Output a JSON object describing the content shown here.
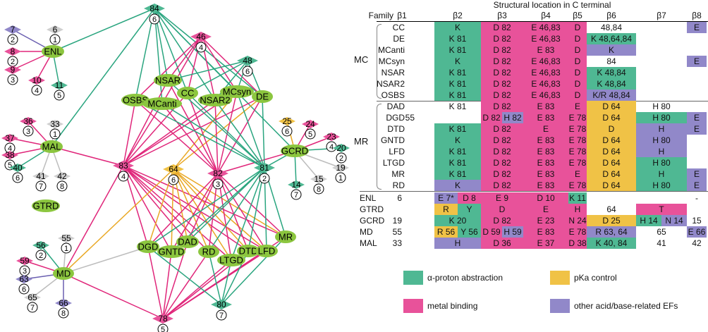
{
  "colors": {
    "green": "#4fb893",
    "pink": "#e8529a",
    "yellow": "#f0c246",
    "purple": "#9188c9",
    "gray": "#cfcfcf",
    "node_green": "#8cc63f",
    "edge_green": "#2aa57f",
    "edge_pink": "#e0267a",
    "edge_yellow": "#e9a825",
    "edge_gray": "#bdbdbd",
    "edge_purple": "#6a5fb0"
  },
  "table": {
    "title": "Structural location in C terminal",
    "headers": [
      "Family",
      "β1",
      "β2",
      "β3",
      "β4",
      "β5",
      "β6",
      "β7",
      "β8"
    ],
    "groups": [
      {
        "label": "MC"
      },
      {
        "label": "MR"
      }
    ],
    "rows": [
      {
        "family": "CC",
        "b1": "",
        "cells": [
          [
            "K",
            "g"
          ],
          [
            "D 82",
            "p"
          ],
          [
            "E 46,83",
            "p"
          ],
          [
            "D",
            "p"
          ],
          [
            "48,84",
            ""
          ],
          [
            "",
            ""
          ],
          [
            "E",
            "u"
          ]
        ]
      },
      {
        "family": "DE",
        "b1": "",
        "cells": [
          [
            "K 81",
            "g"
          ],
          [
            "D 82",
            "p"
          ],
          [
            "E 46,83",
            "p"
          ],
          [
            "D",
            "p"
          ],
          [
            "K 48,64,84",
            "g"
          ],
          [
            "",
            ""
          ],
          [
            "",
            ""
          ]
        ]
      },
      {
        "family": "MCanti",
        "b1": "",
        "cells": [
          [
            "K 81",
            "g"
          ],
          [
            "D 82",
            "p"
          ],
          [
            "E 83",
            "p"
          ],
          [
            "D",
            "p"
          ],
          [
            "K",
            "u"
          ],
          [
            "",
            ""
          ],
          [
            "",
            ""
          ]
        ]
      },
      {
        "family": "MCsyn",
        "b1": "",
        "cells": [
          [
            "K",
            "g"
          ],
          [
            "D 82",
            "p"
          ],
          [
            "E 46,83",
            "p"
          ],
          [
            "D",
            "p"
          ],
          [
            "84",
            ""
          ],
          [
            "",
            ""
          ],
          [
            "E",
            "u"
          ]
        ]
      },
      {
        "family": "NSAR",
        "b1": "",
        "cells": [
          [
            "K 81",
            "g"
          ],
          [
            "D 82",
            "p"
          ],
          [
            "E 46,83",
            "p"
          ],
          [
            "D",
            "p"
          ],
          [
            "K 48,84",
            "g"
          ],
          [
            "",
            ""
          ],
          [
            "",
            ""
          ]
        ]
      },
      {
        "family": "NSAR2",
        "b1": "",
        "cells": [
          [
            "K 81",
            "g"
          ],
          [
            "D 82",
            "p"
          ],
          [
            "E 46,83",
            "p"
          ],
          [
            "D",
            "p"
          ],
          [
            "K 48,84",
            "g"
          ],
          [
            "",
            ""
          ],
          [
            "",
            ""
          ]
        ]
      },
      {
        "family": "OSBS",
        "b1": "",
        "cells": [
          [
            "K 81",
            "g"
          ],
          [
            "D 82",
            "p"
          ],
          [
            "E 46,83",
            "p"
          ],
          [
            "D",
            "p"
          ],
          [
            "K/R 48,84",
            "u"
          ],
          [
            "",
            ""
          ],
          [
            "",
            ""
          ]
        ]
      },
      {
        "family": "DAD",
        "b1": "",
        "cells": [
          [
            "K 81",
            ""
          ],
          [
            "D 82",
            "p"
          ],
          [
            "E 83",
            "p"
          ],
          [
            "E",
            "p"
          ],
          [
            "D 64",
            "y"
          ],
          [
            "H 80",
            ""
          ],
          [
            "",
            ""
          ]
        ]
      },
      {
        "family": "DGD",
        "b1": "55",
        "cells": [
          [
            "",
            ""
          ],
          [
            "D 82|H 82",
            "pu"
          ],
          [
            "E 83",
            "p"
          ],
          [
            "E 78",
            "p"
          ],
          [
            "D 64",
            "y"
          ],
          [
            "H 80",
            "g"
          ],
          [
            "E",
            "u"
          ]
        ]
      },
      {
        "family": "DTD",
        "b1": "",
        "cells": [
          [
            "K 81",
            "g"
          ],
          [
            "D 82",
            "p"
          ],
          [
            "E",
            "p"
          ],
          [
            "E 78",
            "p"
          ],
          [
            "D",
            "y"
          ],
          [
            "H",
            "u"
          ],
          [
            "E",
            "u"
          ]
        ]
      },
      {
        "family": "GNTD",
        "b1": "",
        "cells": [
          [
            "K",
            "g"
          ],
          [
            "D 82",
            "p"
          ],
          [
            "E 83",
            "p"
          ],
          [
            "E 78",
            "p"
          ],
          [
            "D 64",
            "y"
          ],
          [
            "H 80",
            "u"
          ],
          [
            "",
            ""
          ]
        ]
      },
      {
        "family": "LFD",
        "b1": "",
        "cells": [
          [
            "K 81",
            "g"
          ],
          [
            "D 82",
            "p"
          ],
          [
            "E 83",
            "p"
          ],
          [
            "E 78",
            "p"
          ],
          [
            "D 64",
            "y"
          ],
          [
            "H",
            "u"
          ],
          [
            "",
            ""
          ]
        ]
      },
      {
        "family": "LTGD",
        "b1": "",
        "cells": [
          [
            "K 81",
            "g"
          ],
          [
            "D 82",
            "p"
          ],
          [
            "E 83",
            "p"
          ],
          [
            "E 78",
            "p"
          ],
          [
            "D 64",
            "y"
          ],
          [
            "H 80",
            "g"
          ],
          [
            "",
            ""
          ]
        ]
      },
      {
        "family": "MR",
        "b1": "",
        "cells": [
          [
            "K 81",
            "g"
          ],
          [
            "D 82",
            "p"
          ],
          [
            "E 83",
            "p"
          ],
          [
            "E",
            "p"
          ],
          [
            "D 64",
            "y"
          ],
          [
            "H",
            "g"
          ],
          [
            "E",
            "u"
          ]
        ]
      },
      {
        "family": "RD",
        "b1": "",
        "cells": [
          [
            "K",
            "u"
          ],
          [
            "D 82",
            "p"
          ],
          [
            "E 83",
            "p"
          ],
          [
            "E 78",
            "p"
          ],
          [
            "D 64",
            "y"
          ],
          [
            "H 80",
            "g"
          ],
          [
            "E",
            "u"
          ]
        ]
      },
      {
        "family": "ENL",
        "b1": "6",
        "cells": [
          [
            "E 7*|D 8",
            "up"
          ],
          [
            "E 9",
            "p"
          ],
          [
            "D 10",
            "p"
          ],
          [
            "K 11",
            "g"
          ],
          [
            "",
            ""
          ],
          [
            "",
            ""
          ],
          [
            "-",
            ""
          ]
        ]
      },
      {
        "family": "GTRD",
        "b1": "",
        "cells": [
          [
            "R|Y",
            "yg"
          ],
          [
            "D",
            "p"
          ],
          [
            "E",
            "p"
          ],
          [
            "H",
            "p"
          ],
          [
            "64",
            ""
          ],
          [
            "T",
            "p"
          ],
          [
            "",
            ""
          ]
        ]
      },
      {
        "family": "GCRD",
        "b1": "19",
        "cells": [
          [
            "K 20",
            "g"
          ],
          [
            "D 82",
            "p"
          ],
          [
            "E 23",
            "p"
          ],
          [
            "N 24",
            "p"
          ],
          [
            "D 25",
            "y"
          ],
          [
            "H 14|N 14",
            "gu"
          ],
          [
            "15",
            ""
          ]
        ]
      },
      {
        "family": "MD",
        "b1": "55",
        "cells": [
          [
            "R 56|Y 56",
            "yg"
          ],
          [
            "D 59|H 59",
            "pu"
          ],
          [
            "E 83",
            "p"
          ],
          [
            "E 78",
            "p"
          ],
          [
            "R 63, 64",
            "u"
          ],
          [
            "65",
            ""
          ],
          [
            "E 66",
            "u"
          ]
        ]
      },
      {
        "family": "MAL",
        "b1": "33",
        "cells": [
          [
            "H",
            "u"
          ],
          [
            "D 36",
            "p"
          ],
          [
            "E 37",
            "p"
          ],
          [
            "D 38",
            "p"
          ],
          [
            "K 40, 84",
            "g"
          ],
          [
            "41",
            ""
          ],
          [
            "42",
            ""
          ]
        ]
      }
    ]
  },
  "legend": [
    {
      "key": "green",
      "label": "α-proton abstraction"
    },
    {
      "key": "yellow",
      "label": "pKa control"
    },
    {
      "key": "pink",
      "label": "metal binding"
    },
    {
      "key": "purple",
      "label": "other acid/base-related EFs"
    }
  ],
  "network": {
    "families": [
      {
        "id": "ENL",
        "label": "ENL"
      },
      {
        "id": "MAL",
        "label": "MAL"
      },
      {
        "id": "GTRD",
        "label": "GTRD"
      },
      {
        "id": "MD",
        "label": "MD"
      },
      {
        "id": "OSBS",
        "label": "OSBS"
      },
      {
        "id": "MCanti",
        "label": "MCanti"
      },
      {
        "id": "NSAR",
        "label": "NSAR"
      },
      {
        "id": "CC",
        "label": "CC"
      },
      {
        "id": "NSAR2",
        "label": "NSAR2"
      },
      {
        "id": "MCsyn",
        "label": "MCsyn"
      },
      {
        "id": "DE",
        "label": "DE"
      },
      {
        "id": "GCRD",
        "label": "GCRD"
      },
      {
        "id": "DGD",
        "label": "DGD"
      },
      {
        "id": "GNTD",
        "label": "GNTD"
      },
      {
        "id": "DAD",
        "label": "DAD"
      },
      {
        "id": "RD",
        "label": "RD"
      },
      {
        "id": "LTGD",
        "label": "LTGD"
      },
      {
        "id": "DTD",
        "label": "DTD"
      },
      {
        "id": "LFD",
        "label": "LFD"
      },
      {
        "id": "MR",
        "label": "MR"
      }
    ],
    "positions": [
      {
        "id": "p84",
        "num": "84",
        "strand": "6",
        "color": "green"
      },
      {
        "id": "p46",
        "num": "46",
        "strand": "4",
        "color": "pink"
      },
      {
        "id": "p48",
        "num": "48",
        "strand": "6",
        "color": "green"
      },
      {
        "id": "p83",
        "num": "83",
        "strand": "4",
        "color": "pink"
      },
      {
        "id": "p64",
        "num": "64",
        "strand": "6",
        "color": "yellow"
      },
      {
        "id": "p82",
        "num": "82",
        "strand": "3",
        "color": "pink"
      },
      {
        "id": "p81",
        "num": "81",
        "strand": "2",
        "color": "green"
      },
      {
        "id": "p78",
        "num": "78",
        "strand": "5",
        "color": "pink"
      },
      {
        "id": "p80",
        "num": "80",
        "strand": "7",
        "color": "green"
      },
      {
        "id": "p7",
        "num": "7",
        "strand": "2",
        "color": "purple"
      },
      {
        "id": "p6",
        "num": "6",
        "strand": "1",
        "color": "gray"
      },
      {
        "id": "p8",
        "num": "8",
        "strand": "2",
        "color": "pink"
      },
      {
        "id": "p9",
        "num": "9",
        "strand": "3",
        "color": "pink"
      },
      {
        "id": "p10",
        "num": "10",
        "strand": "4",
        "color": "pink"
      },
      {
        "id": "p11",
        "num": "11",
        "strand": "5",
        "color": "green"
      },
      {
        "id": "p36",
        "num": "36",
        "strand": "3",
        "color": "pink"
      },
      {
        "id": "p33",
        "num": "33",
        "strand": "1",
        "color": "gray"
      },
      {
        "id": "p37",
        "num": "37",
        "strand": "4",
        "color": "pink"
      },
      {
        "id": "p38",
        "num": "38",
        "strand": "5",
        "color": "pink"
      },
      {
        "id": "p40",
        "num": "40",
        "strand": "6",
        "color": "green"
      },
      {
        "id": "p41",
        "num": "41",
        "strand": "7",
        "color": "gray"
      },
      {
        "id": "p42",
        "num": "42",
        "strand": "8",
        "color": "gray"
      },
      {
        "id": "p25",
        "num": "25",
        "strand": "6",
        "color": "yellow"
      },
      {
        "id": "p24",
        "num": "24",
        "strand": "5",
        "color": "pink"
      },
      {
        "id": "p23",
        "num": "23",
        "strand": "4",
        "color": "pink"
      },
      {
        "id": "p20",
        "num": "20",
        "strand": "2",
        "color": "green"
      },
      {
        "id": "p19",
        "num": "19",
        "strand": "1",
        "color": "gray"
      },
      {
        "id": "p15",
        "num": "15",
        "strand": "8",
        "color": "gray"
      },
      {
        "id": "p14",
        "num": "14",
        "strand": "7",
        "color": "green"
      },
      {
        "id": "p56",
        "num": "56",
        "strand": "2",
        "color": "green"
      },
      {
        "id": "p55",
        "num": "55",
        "strand": "1",
        "color": "gray"
      },
      {
        "id": "p59",
        "num": "59",
        "strand": "3",
        "color": "pink"
      },
      {
        "id": "p63",
        "num": "63",
        "strand": "6",
        "color": "purple"
      },
      {
        "id": "p65",
        "num": "65",
        "strand": "7",
        "color": "gray"
      },
      {
        "id": "p66",
        "num": "66",
        "strand": "8",
        "color": "purple"
      }
    ]
  }
}
